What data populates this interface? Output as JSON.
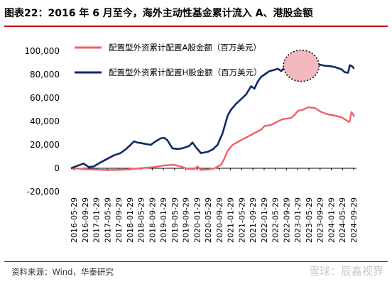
{
  "title": "图表22：2016 年 6 月至今，海外主动性基金累计流入 A、港股金额",
  "source": "资料来源：Wind，华泰研究",
  "watermark": "雪球：辰鑫视界",
  "colors": {
    "series_a": "#f2606a",
    "series_h": "#0f2a63",
    "highlight_fill": "#f4b9c0",
    "accent": "#c00000"
  },
  "chart_data": {
    "type": "line",
    "ylim": [
      -20000,
      100000
    ],
    "yticks": [
      -20000,
      0,
      20000,
      40000,
      60000,
      80000,
      100000
    ],
    "ytick_labels": [
      "-20,000",
      "0",
      "20,000",
      "40,000",
      "60,000",
      "80,000",
      "100,000"
    ],
    "xtick_labels": [
      "2016-05-29",
      "2016-09-29",
      "2017-01-29",
      "2017-05-29",
      "2017-09-29",
      "2018-01-29",
      "2018-05-29",
      "2018-09-29",
      "2019-01-29",
      "2019-05-29",
      "2019-09-29",
      "2020-01-29",
      "2020-05-29",
      "2020-09-29",
      "2021-01-29",
      "2021-05-29",
      "2021-09-29",
      "2022-01-29",
      "2022-05-29",
      "2022-09-29",
      "2023-01-29",
      "2023-05-29",
      "2023-09-29",
      "2024-01-29",
      "2024-05-29",
      "2024-09-29"
    ],
    "legend_location": "top-left",
    "series": [
      {
        "name": "配置型外资累计配置A股金额（百万美元）",
        "color": "#f2606a",
        "points": [
          [
            2016.42,
            0
          ],
          [
            2016.75,
            -500
          ],
          [
            2017.0,
            -1000
          ],
          [
            2017.5,
            -1500
          ],
          [
            2018.0,
            -1200
          ],
          [
            2018.5,
            0
          ],
          [
            2018.9,
            1000
          ],
          [
            2019.2,
            2500
          ],
          [
            2019.5,
            3000
          ],
          [
            2019.7,
            1500
          ],
          [
            2019.9,
            -500
          ],
          [
            2020.1,
            -800
          ],
          [
            2020.2,
            1500
          ],
          [
            2020.3,
            -1500
          ],
          [
            2020.5,
            -1000
          ],
          [
            2020.7,
            -200
          ],
          [
            2020.9,
            3000
          ],
          [
            2021.0,
            8000
          ],
          [
            2021.1,
            15000
          ],
          [
            2021.25,
            20000
          ],
          [
            2021.5,
            24000
          ],
          [
            2021.7,
            27000
          ],
          [
            2021.9,
            30000
          ],
          [
            2022.1,
            33000
          ],
          [
            2022.2,
            36000
          ],
          [
            2022.4,
            37000
          ],
          [
            2022.6,
            40000
          ],
          [
            2022.75,
            42000
          ],
          [
            2022.9,
            42500
          ],
          [
            2023.0,
            43000
          ],
          [
            2023.1,
            45500
          ],
          [
            2023.2,
            49000
          ],
          [
            2023.35,
            50000
          ],
          [
            2023.5,
            52000
          ],
          [
            2023.7,
            51500
          ],
          [
            2023.9,
            48000
          ],
          [
            2024.1,
            46000
          ],
          [
            2024.3,
            45000
          ],
          [
            2024.5,
            43500
          ],
          [
            2024.65,
            41000
          ],
          [
            2024.72,
            39500
          ],
          [
            2024.75,
            40500
          ],
          [
            2024.8,
            48000
          ],
          [
            2024.85,
            46000
          ],
          [
            2024.88,
            44000
          ]
        ]
      },
      {
        "name": "配置型外资累计配置H股金额（百万美元）",
        "color": "#0f2a63",
        "points": [
          [
            2016.42,
            0
          ],
          [
            2016.6,
            2000
          ],
          [
            2016.8,
            4000
          ],
          [
            2016.95,
            1000
          ],
          [
            2017.1,
            1500
          ],
          [
            2017.3,
            5000
          ],
          [
            2017.5,
            8000
          ],
          [
            2017.7,
            11000
          ],
          [
            2017.9,
            13000
          ],
          [
            2018.05,
            16000
          ],
          [
            2018.2,
            20000
          ],
          [
            2018.3,
            23000
          ],
          [
            2018.4,
            22000
          ],
          [
            2018.6,
            21000
          ],
          [
            2018.8,
            20000
          ],
          [
            2018.95,
            23000
          ],
          [
            2019.1,
            25500
          ],
          [
            2019.2,
            26000
          ],
          [
            2019.3,
            24000
          ],
          [
            2019.45,
            17000
          ],
          [
            2019.6,
            16500
          ],
          [
            2019.75,
            17000
          ],
          [
            2019.95,
            19000
          ],
          [
            2020.05,
            22000
          ],
          [
            2020.15,
            18000
          ],
          [
            2020.3,
            13000
          ],
          [
            2020.5,
            14000
          ],
          [
            2020.65,
            16000
          ],
          [
            2020.8,
            20000
          ],
          [
            2020.95,
            30000
          ],
          [
            2021.1,
            45000
          ],
          [
            2021.2,
            50000
          ],
          [
            2021.35,
            55000
          ],
          [
            2021.5,
            59000
          ],
          [
            2021.65,
            63000
          ],
          [
            2021.8,
            70000
          ],
          [
            2021.9,
            68000
          ],
          [
            2022.0,
            74000
          ],
          [
            2022.1,
            78000
          ],
          [
            2022.2,
            80000
          ],
          [
            2022.35,
            83000
          ],
          [
            2022.5,
            84000
          ],
          [
            2022.6,
            85000
          ],
          [
            2022.7,
            83000
          ],
          [
            2022.8,
            86000
          ],
          [
            2022.9,
            87000
          ],
          [
            2023.0,
            92000
          ],
          [
            2023.1,
            93000
          ],
          [
            2023.25,
            93500
          ],
          [
            2023.4,
            92500
          ],
          [
            2023.55,
            91500
          ],
          [
            2023.7,
            89000
          ],
          [
            2023.85,
            88500
          ],
          [
            2024.0,
            87500
          ],
          [
            2024.2,
            87000
          ],
          [
            2024.35,
            86000
          ],
          [
            2024.5,
            84500
          ],
          [
            2024.6,
            82000
          ],
          [
            2024.7,
            81500
          ],
          [
            2024.75,
            88000
          ],
          [
            2024.82,
            87000
          ],
          [
            2024.88,
            85000
          ]
        ]
      }
    ],
    "highlight_center": [
      2023.3,
      87500
    ]
  }
}
